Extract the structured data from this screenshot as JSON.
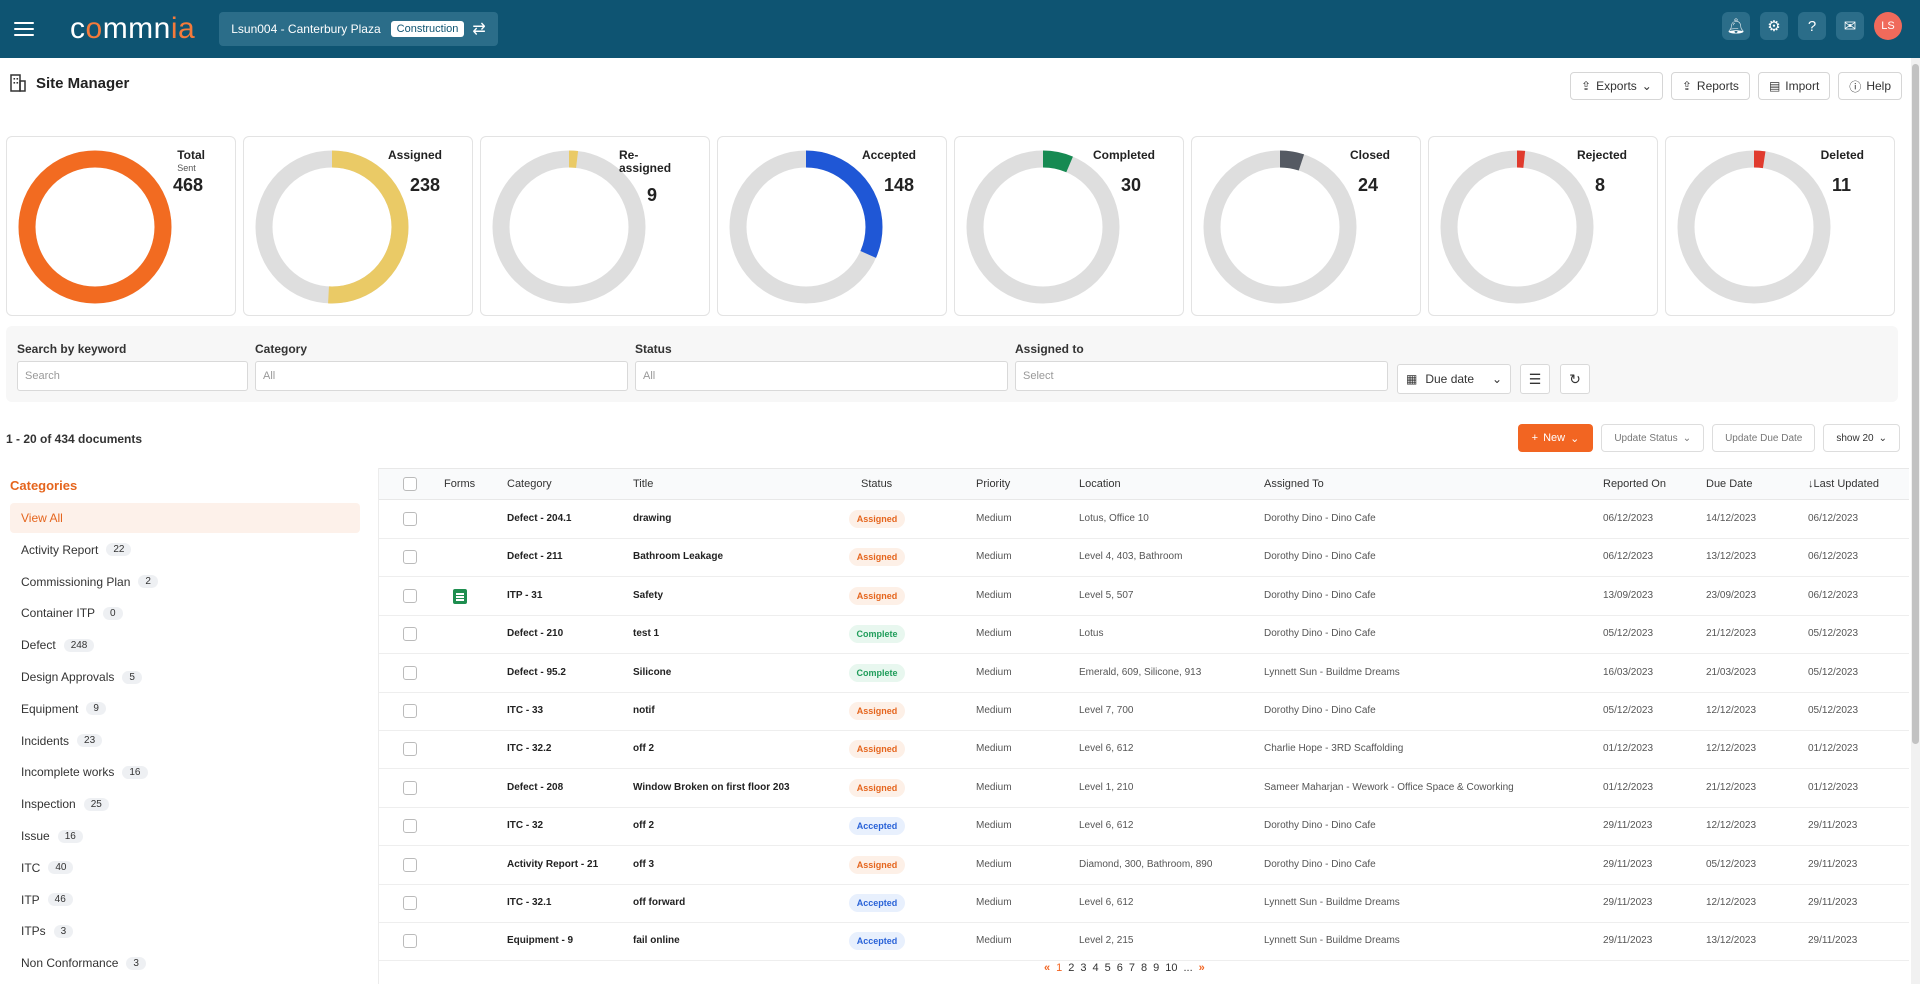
{
  "app": {
    "logo_pre": "c",
    "logo_accent": "o",
    "logo_mid": "mmn",
    "logo_accent2": "ia",
    "project_name": "Lsun004 - Canterbury Plaza",
    "project_badge": "Construction",
    "avatar_initials": "LS"
  },
  "page": {
    "title": "Site Manager",
    "actions": {
      "exports": "Exports",
      "reports": "Reports",
      "import": "Import",
      "help": "Help"
    }
  },
  "summary": [
    {
      "label": "Total",
      "sub": "Sent",
      "value": "468",
      "color": "#f26b21",
      "fraction": 1.0
    },
    {
      "label": "Assigned",
      "sub": "",
      "value": "238",
      "color": "#eaca66",
      "fraction": 0.508
    },
    {
      "label": "Re-assigned",
      "sub": "",
      "value": "9",
      "color": "#eaca66",
      "fraction": 0.019
    },
    {
      "label": "Accepted",
      "sub": "",
      "value": "148",
      "color": "#1f57d6",
      "fraction": 0.316
    },
    {
      "label": "Completed",
      "sub": "",
      "value": "30",
      "color": "#168a52",
      "fraction": 0.064
    },
    {
      "label": "Closed",
      "sub": "",
      "value": "24",
      "color": "#555a63",
      "fraction": 0.051
    },
    {
      "label": "Rejected",
      "sub": "",
      "value": "8",
      "color": "#e03b2e",
      "fraction": 0.017
    },
    {
      "label": "Deleted",
      "sub": "",
      "value": "11",
      "color": "#e03b2e",
      "fraction": 0.024
    }
  ],
  "filters": {
    "keyword_label": "Search by keyword",
    "keyword_placeholder": "Search",
    "category_label": "Category",
    "category_value": "All",
    "status_label": "Status",
    "status_value": "All",
    "assigned_label": "Assigned to",
    "assigned_value": "Select",
    "due_date": "Due date"
  },
  "list": {
    "count_text": "1 - 20 of 434 documents",
    "new_label": "New",
    "update_status": "Update Status",
    "update_due": "Update Due Date",
    "show": "show 20"
  },
  "categories": {
    "heading": "Categories",
    "items": [
      {
        "label": "View All",
        "count": ""
      },
      {
        "label": "Activity Report",
        "count": "22"
      },
      {
        "label": "Commissioning Plan",
        "count": "2"
      },
      {
        "label": "Container ITP",
        "count": "0"
      },
      {
        "label": "Defect",
        "count": "248"
      },
      {
        "label": "Design Approvals",
        "count": "5"
      },
      {
        "label": "Equipment",
        "count": "9"
      },
      {
        "label": "Incidents",
        "count": "23"
      },
      {
        "label": "Incomplete works",
        "count": "16"
      },
      {
        "label": "Inspection",
        "count": "25"
      },
      {
        "label": "Issue",
        "count": "16"
      },
      {
        "label": "ITC",
        "count": "40"
      },
      {
        "label": "ITP",
        "count": "46"
      },
      {
        "label": "ITPs",
        "count": "3"
      },
      {
        "label": "Non Conformance",
        "count": "3"
      }
    ]
  },
  "table": {
    "headers": {
      "forms": "Forms",
      "category": "Category",
      "title": "Title",
      "status": "Status",
      "priority": "Priority",
      "location": "Location",
      "assigned_to": "Assigned To",
      "reported_on": "Reported On",
      "due_date": "Due Date",
      "last_updated": "↓Last Updated"
    },
    "rows": [
      {
        "form": false,
        "category": "Defect - 204.1",
        "title": "drawing",
        "status": "Assigned",
        "priority": "Medium",
        "location": "Lotus, Office 10",
        "assigned": "Dorothy Dino - Dino Cafe",
        "reported": "06/12/2023",
        "due": "14/12/2023",
        "updated": "06/12/2023"
      },
      {
        "form": false,
        "category": "Defect - 211",
        "title": "Bathroom Leakage",
        "status": "Assigned",
        "priority": "Medium",
        "location": "Level 4, 403, Bathroom",
        "assigned": "Dorothy Dino - Dino Cafe",
        "reported": "06/12/2023",
        "due": "13/12/2023",
        "updated": "06/12/2023"
      },
      {
        "form": true,
        "category": "ITP - 31",
        "title": "Safety",
        "status": "Assigned",
        "priority": "Medium",
        "location": "Level 5, 507",
        "assigned": "Dorothy Dino - Dino Cafe",
        "reported": "13/09/2023",
        "due": "23/09/2023",
        "updated": "06/12/2023"
      },
      {
        "form": false,
        "category": "Defect - 210",
        "title": "test 1",
        "status": "Complete",
        "priority": "Medium",
        "location": "Lotus",
        "assigned": "Dorothy Dino - Dino Cafe",
        "reported": "05/12/2023",
        "due": "21/12/2023",
        "updated": "05/12/2023"
      },
      {
        "form": false,
        "category": "Defect - 95.2",
        "title": "Silicone",
        "status": "Complete",
        "priority": "Medium",
        "location": "Emerald, 609, Silicone, 913",
        "assigned": "Lynnett Sun - Buildme Dreams",
        "reported": "16/03/2023",
        "due": "21/03/2023",
        "updated": "05/12/2023"
      },
      {
        "form": false,
        "category": "ITC - 33",
        "title": "notif",
        "status": "Assigned",
        "priority": "Medium",
        "location": "Level 7, 700",
        "assigned": "Dorothy Dino - Dino Cafe",
        "reported": "05/12/2023",
        "due": "12/12/2023",
        "updated": "05/12/2023"
      },
      {
        "form": false,
        "category": "ITC - 32.2",
        "title": "off 2",
        "status": "Assigned",
        "priority": "Medium",
        "location": "Level 6, 612",
        "assigned": "Charlie Hope - 3RD Scaffolding",
        "reported": "01/12/2023",
        "due": "12/12/2023",
        "updated": "01/12/2023"
      },
      {
        "form": false,
        "category": "Defect - 208",
        "title": "Window Broken on first floor 203",
        "status": "Assigned",
        "priority": "Medium",
        "location": "Level 1, 210",
        "assigned": "Sameer Maharjan - Wework - Office Space & Coworking",
        "reported": "01/12/2023",
        "due": "21/12/2023",
        "updated": "01/12/2023"
      },
      {
        "form": false,
        "category": "ITC - 32",
        "title": "off 2",
        "status": "Accepted",
        "priority": "Medium",
        "location": "Level 6, 612",
        "assigned": "Dorothy Dino - Dino Cafe",
        "reported": "29/11/2023",
        "due": "12/12/2023",
        "updated": "29/11/2023"
      },
      {
        "form": false,
        "category": "Activity Report - 21",
        "title": "off 3",
        "status": "Assigned",
        "priority": "Medium",
        "location": "Diamond, 300, Bathroom, 890",
        "assigned": "Dorothy Dino - Dino Cafe",
        "reported": "29/11/2023",
        "due": "05/12/2023",
        "updated": "29/11/2023"
      },
      {
        "form": false,
        "category": "ITC - 32.1",
        "title": "off forward",
        "status": "Accepted",
        "priority": "Medium",
        "location": "Level 6, 612",
        "assigned": "Lynnett Sun - Buildme Dreams",
        "reported": "29/11/2023",
        "due": "12/12/2023",
        "updated": "29/11/2023"
      },
      {
        "form": false,
        "category": "Equipment - 9",
        "title": "fail online",
        "status": "Accepted",
        "priority": "Medium",
        "location": "Level 2, 215",
        "assigned": "Lynnett Sun - Buildme Dreams",
        "reported": "29/11/2023",
        "due": "13/12/2023",
        "updated": "29/11/2023"
      }
    ]
  },
  "pagination": {
    "prev": "«",
    "pages": [
      "1",
      "2",
      "3",
      "4",
      "5",
      "6",
      "7",
      "8",
      "9",
      "10",
      "..."
    ],
    "next": "»"
  }
}
